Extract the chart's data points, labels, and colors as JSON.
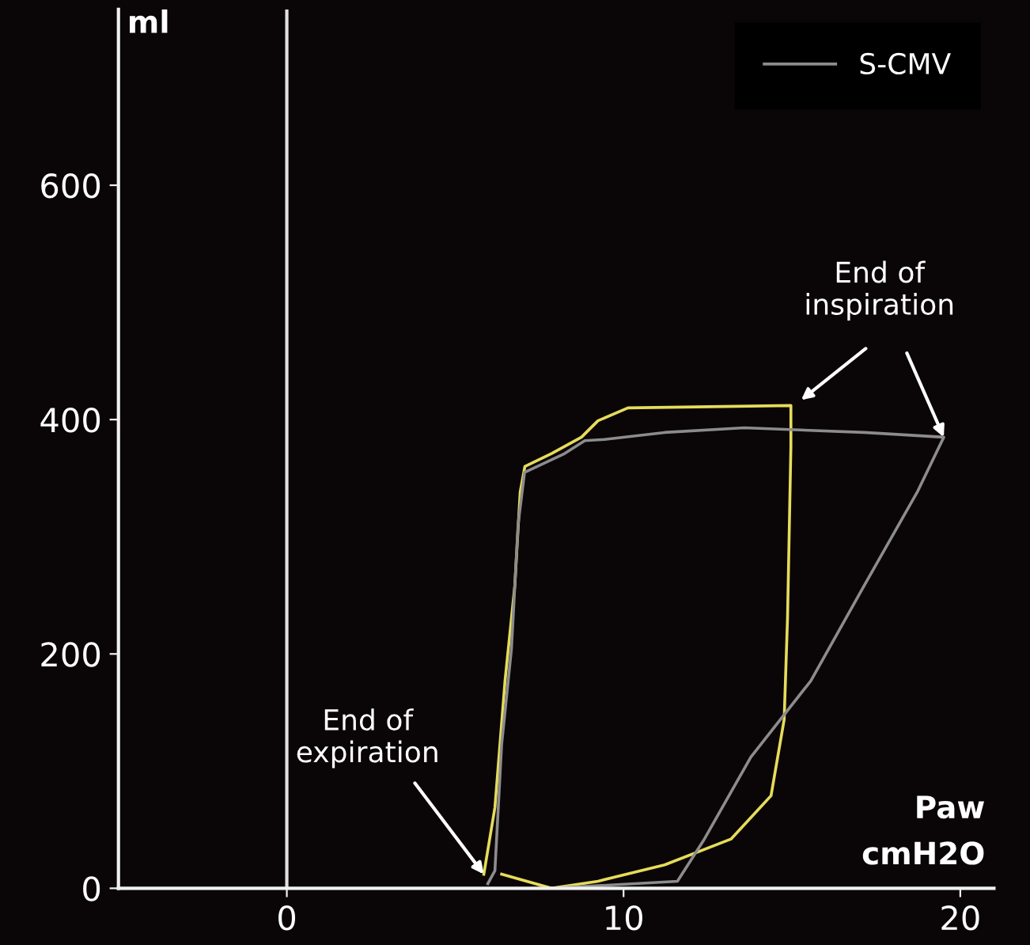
{
  "chart_data": {
    "type": "line",
    "xlabel": "Paw\ncmH2O",
    "ylabel": "ml",
    "xlim": [
      -5,
      21
    ],
    "ylim": [
      0,
      750
    ],
    "xticks": [
      0,
      10,
      20
    ],
    "yticks": [
      0,
      200,
      400,
      600
    ],
    "grid": false,
    "legend": "top right",
    "marker": "none",
    "line_style": "solid",
    "ref_lines": [
      {
        "axis": "x",
        "value": 0,
        "color": "#e0e0e0"
      }
    ],
    "series": [
      {
        "color": "#e6dc5a",
        "x": [
          5.85,
          6.18,
          6.48,
          6.77,
          6.93,
          7.07,
          7.86,
          8.75,
          9.24,
          10.13,
          14.97,
          14.97,
          14.87,
          14.77,
          14.38,
          13.19,
          11.22,
          9.24,
          7.86,
          6.38
        ],
        "values": [
          12,
          69,
          177,
          258,
          338,
          360,
          371,
          385,
          399,
          410,
          412,
          377,
          231,
          144,
          79,
          42,
          20,
          6,
          0,
          12
        ]
      },
      {
        "name": "S-CMV",
        "color": "#8c8c8c",
        "x": [
          5.97,
          6.18,
          6.38,
          6.67,
          6.87,
          7.06,
          8.25,
          8.85,
          9.43,
          11.22,
          13.59,
          17.14,
          19.51,
          18.72,
          17.14,
          15.56,
          13.78,
          12.4,
          11.6,
          7.86
        ],
        "values": [
          4,
          15,
          123,
          204,
          311,
          355,
          371,
          382,
          383,
          389,
          393,
          389,
          385,
          338,
          258,
          177,
          112,
          42,
          6,
          0
        ]
      }
    ],
    "annotations": [
      {
        "text": "End of\ninspiration",
        "x": 19.51,
        "y": 385
      },
      {
        "text": "End of\nexpiration",
        "x": 5.85,
        "y": 12
      }
    ]
  }
}
